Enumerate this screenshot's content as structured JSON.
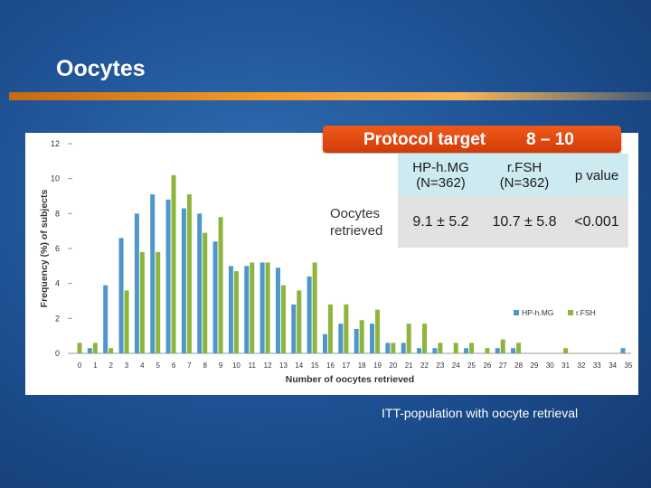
{
  "slide": {
    "title": "Oocytes",
    "footnote": "ITT-population with oocyte retrieval"
  },
  "banner": {
    "label": "Protocol target",
    "range": "8 – 10"
  },
  "table": {
    "columns": [
      {
        "line1": "HP-h.MG",
        "line2": "(N=362)"
      },
      {
        "line1": "r.FSH",
        "line2": "(N=362)"
      },
      {
        "line1": "p value",
        "line2": ""
      }
    ],
    "row": {
      "label_line1": "Oocytes",
      "label_line2": "retrieved",
      "values": [
        "9.1 ± 5.2",
        "10.7 ± 5.8",
        "<0.001"
      ]
    }
  },
  "chart_data": {
    "type": "bar",
    "xlabel": "Number of oocytes retrieved",
    "ylabel": "Frequency (%) of subjects",
    "ylim": [
      0,
      12
    ],
    "yticks": [
      0,
      2,
      4,
      6,
      8,
      10,
      12
    ],
    "grid": false,
    "legend_position": "bottom-right",
    "categories": [
      "0",
      "1",
      "2",
      "3",
      "4",
      "5",
      "6",
      "7",
      "8",
      "9",
      "10",
      "11",
      "12",
      "13",
      "14",
      "15",
      "16",
      "17",
      "18",
      "19",
      "20",
      "21",
      "22",
      "23",
      "24",
      "25",
      "26",
      "27",
      "28",
      "29",
      "30",
      "31",
      "32",
      "33",
      "34",
      "35"
    ],
    "series": [
      {
        "name": "HP-h.MG",
        "color": "#4f97c9",
        "values": [
          0,
          0.3,
          3.9,
          6.6,
          8.0,
          9.1,
          8.8,
          8.3,
          8.0,
          6.4,
          5.0,
          5.0,
          5.2,
          4.9,
          2.8,
          4.4,
          1.1,
          1.7,
          1.4,
          1.7,
          0.6,
          0.6,
          0.3,
          0.3,
          0,
          0.3,
          0,
          0.3,
          0.3,
          0,
          0,
          0,
          0,
          0,
          0,
          0.3
        ]
      },
      {
        "name": "r.FSH",
        "color": "#8db43b",
        "values": [
          0.6,
          0.6,
          0.3,
          3.6,
          5.8,
          5.8,
          10.2,
          9.1,
          6.9,
          7.8,
          4.7,
          5.2,
          5.2,
          3.9,
          3.6,
          5.2,
          2.8,
          2.8,
          1.9,
          2.5,
          0.6,
          1.7,
          1.7,
          0.6,
          0.6,
          0.6,
          0.3,
          0.8,
          0.6,
          0,
          0,
          0.3,
          0,
          0,
          0,
          0
        ]
      }
    ]
  }
}
